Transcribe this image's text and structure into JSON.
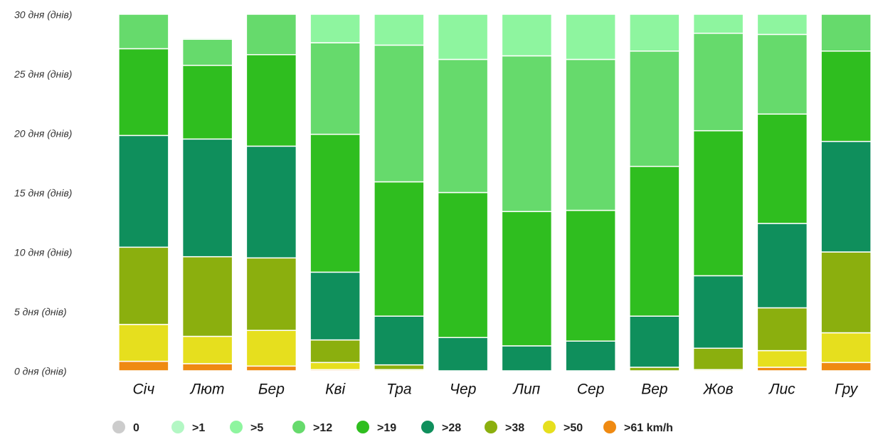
{
  "chart_data": {
    "type": "stacked_bar",
    "categories": [
      "Січ",
      "Лют",
      "Бер",
      "Кві",
      "Тра",
      "Чер",
      "Лип",
      "Сер",
      "Вер",
      "Жов",
      "Лис",
      "Гру"
    ],
    "series": [
      {
        "name": "0",
        "color": "#cccccc",
        "values": [
          0,
          0,
          0,
          0,
          0,
          0,
          0,
          0,
          0,
          0,
          0,
          0
        ]
      },
      {
        "name": ">1",
        "color": "#b3f7c4",
        "values": [
          0,
          0,
          0,
          0,
          0,
          0,
          0,
          0,
          0,
          0,
          0,
          0
        ]
      },
      {
        "name": ">5",
        "color": "#8ef59f",
        "values": [
          0,
          0.1,
          0,
          2.4,
          2.6,
          3.8,
          3.5,
          3.8,
          3.1,
          1.6,
          1.7,
          0
        ]
      },
      {
        "name": ">12",
        "color": "#66da6c",
        "values": [
          2.9,
          2.2,
          3.4,
          7.7,
          11.5,
          11.2,
          13.1,
          12.7,
          9.7,
          8.2,
          6.7,
          3.1
        ]
      },
      {
        "name": ">19",
        "color": "#2fbe1f",
        "values": [
          7.3,
          6.2,
          7.7,
          11.6,
          11.3,
          12.2,
          11.3,
          11.0,
          12.6,
          12.2,
          9.2,
          7.6
        ]
      },
      {
        "name": ">28",
        "color": "#0f8f5c",
        "values": [
          9.4,
          9.9,
          9.4,
          5.7,
          4.1,
          2.8,
          2.1,
          2.5,
          4.3,
          6.1,
          7.1,
          9.3
        ]
      },
      {
        "name": ">38",
        "color": "#8baf0e",
        "values": [
          6.5,
          6.7,
          6.1,
          1.9,
          0.4,
          0,
          0,
          0,
          0.3,
          1.8,
          3.6,
          6.8
        ]
      },
      {
        "name": ">50",
        "color": "#e6df1e",
        "values": [
          3.1,
          2.3,
          3.0,
          0.6,
          0.1,
          0,
          0,
          0,
          0,
          0.1,
          1.4,
          2.5
        ]
      },
      {
        "name": ">61 km/h",
        "color": "#ef8a12",
        "values": [
          0.8,
          0.6,
          0.4,
          0.1,
          0,
          0,
          0,
          0,
          0,
          0,
          0.3,
          0.7
        ]
      }
    ],
    "ylim": [
      0,
      30
    ],
    "yticks": [
      {
        "value": 0,
        "label": "0 дня (днів)"
      },
      {
        "value": 5,
        "label": "5 дня (днів)"
      },
      {
        "value": 10,
        "label": "10 дня (днів)"
      },
      {
        "value": 15,
        "label": "15 дня (днів)"
      },
      {
        "value": 20,
        "label": "20 дня (днів)"
      },
      {
        "value": 25,
        "label": "25 дня (днів)"
      },
      {
        "value": 30,
        "label": "30 дня (днів)"
      }
    ]
  }
}
